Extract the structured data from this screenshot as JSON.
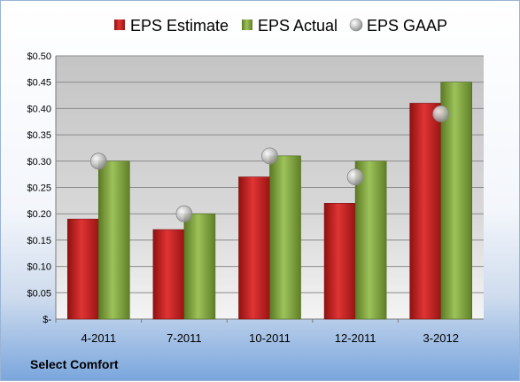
{
  "footer": {
    "company": "Select Comfort"
  },
  "colors": {
    "estimate": "#c41e1e",
    "actual": "#7ea33a",
    "gaap": "#b8b8b8"
  },
  "chart_data": {
    "type": "bar",
    "categories": [
      "4-2011",
      "7-2011",
      "10-2011",
      "12-2011",
      "3-2012"
    ],
    "series": [
      {
        "name": "EPS Estimate",
        "kind": "bar",
        "values": [
          0.19,
          0.17,
          0.27,
          0.22,
          0.41
        ]
      },
      {
        "name": "EPS Actual",
        "kind": "bar",
        "values": [
          0.3,
          0.2,
          0.31,
          0.3,
          0.45
        ]
      },
      {
        "name": "EPS GAAP",
        "kind": "marker",
        "values": [
          0.3,
          0.2,
          0.31,
          0.27,
          0.39
        ]
      }
    ],
    "ylim": [
      0,
      0.5
    ],
    "ytick_labels": [
      "$-",
      "$0.05",
      "$0.10",
      "$0.15",
      "$0.20",
      "$0.25",
      "$0.30",
      "$0.35",
      "$0.40",
      "$0.45",
      "$0.50"
    ],
    "legend_position": "top",
    "grid": true
  }
}
